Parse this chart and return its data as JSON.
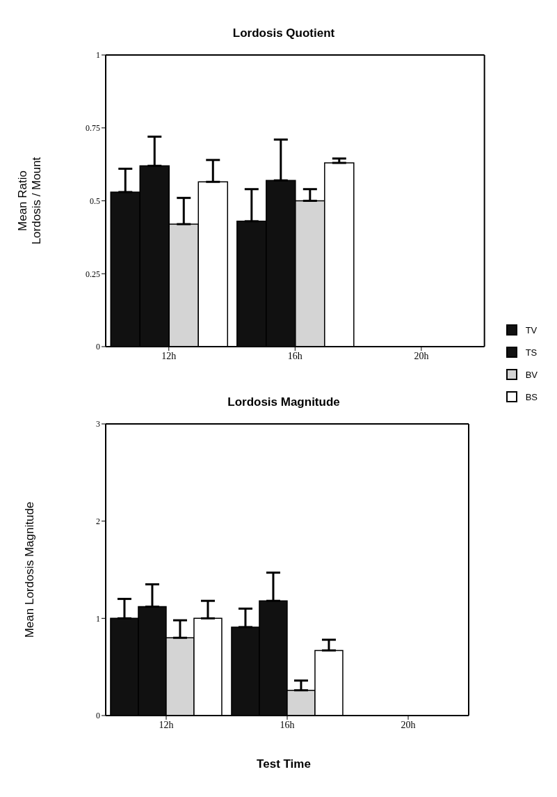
{
  "chart_data": [
    {
      "type": "bar",
      "title": "Lordosis Quotient",
      "ylabel": "Mean Ratio\nLordosis / Mount",
      "categories": [
        "12h",
        "16h",
        "20h"
      ],
      "ylim": [
        0,
        1
      ],
      "yticks": [
        0,
        0.25,
        0.5,
        0.75,
        1
      ],
      "grid": false,
      "legend": "right",
      "series": [
        {
          "name": "TV",
          "color": "#111111",
          "values": [
            0.53,
            0.43,
            null
          ],
          "errors": [
            [
              0.53,
              0.61
            ],
            [
              0.43,
              0.54
            ],
            null
          ]
        },
        {
          "name": "TS",
          "color": "#111111",
          "values": [
            0.62,
            0.57,
            null
          ],
          "errors": [
            [
              0.62,
              0.72
            ],
            [
              0.57,
              0.71
            ],
            null
          ]
        },
        {
          "name": "BV",
          "color": "#d4d4d4",
          "values": [
            0.42,
            0.5,
            null
          ],
          "errors": [
            [
              0.42,
              0.51
            ],
            [
              0.5,
              0.54
            ],
            null
          ]
        },
        {
          "name": "BS",
          "color": "#ffffff",
          "values": [
            0.565,
            0.63,
            null
          ],
          "errors": [
            [
              0.565,
              0.64
            ],
            [
              0.63,
              0.645
            ],
            null
          ]
        }
      ]
    },
    {
      "type": "bar",
      "title": "Lordosis Magnitude",
      "ylabel": "Mean Lordosis Magnitude",
      "xlabel": "Test Time",
      "categories": [
        "12h",
        "16h",
        "20h"
      ],
      "ylim": [
        0,
        3
      ],
      "yticks": [
        0,
        1,
        2,
        3
      ],
      "grid": false,
      "legend": false,
      "series": [
        {
          "color": "#111111",
          "values": [
            1.0,
            0.91,
            null
          ],
          "errors": [
            [
              1.0,
              1.2
            ],
            [
              0.91,
              1.1
            ],
            null
          ]
        },
        {
          "color": "#111111",
          "values": [
            1.12,
            1.18,
            null
          ],
          "errors": [
            [
              1.12,
              1.35
            ],
            [
              1.18,
              1.47
            ],
            null
          ]
        },
        {
          "color": "#d4d4d4",
          "values": [
            0.8,
            0.26,
            null
          ],
          "errors": [
            [
              0.8,
              0.98
            ],
            [
              0.26,
              0.36
            ],
            null
          ]
        },
        {
          "color": "#ffffff",
          "values": [
            1.0,
            0.67,
            null
          ],
          "errors": [
            [
              1.0,
              1.18
            ],
            [
              0.67,
              0.78
            ],
            null
          ]
        }
      ]
    }
  ]
}
